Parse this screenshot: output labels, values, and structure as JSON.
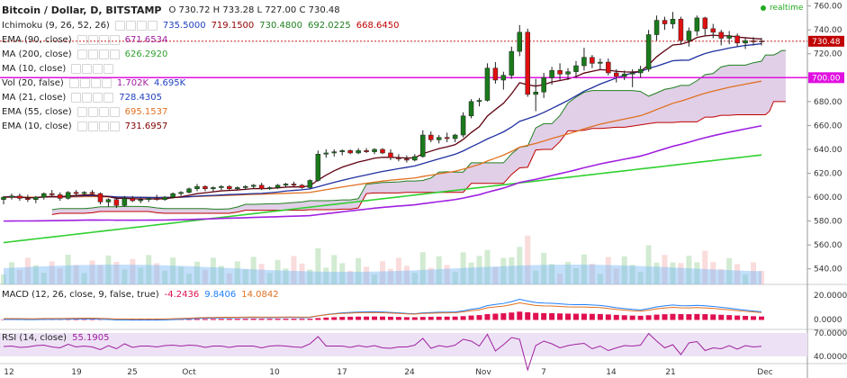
{
  "header": {
    "title": "Bitcoin / Dollar, D, BITSTAMP",
    "ohlc": "O 730.72  H 733.28  L 727.00  C 730.48",
    "realtime": "realtime"
  },
  "legend": [
    {
      "name": "Ichimoku (9, 26, 52, 26)",
      "values": [
        "735.5000",
        "719.1500",
        "730.4800",
        "692.0225",
        "668.6450"
      ],
      "colors": [
        "#2040c0",
        "#900000",
        "#208020",
        "#208020",
        "#c00000"
      ]
    },
    {
      "name": "EMA (90, close)",
      "values": [
        "671.6534"
      ],
      "colors": [
        "#a020a0"
      ]
    },
    {
      "name": "MA (200, close)",
      "values": [
        "626.2920"
      ],
      "colors": [
        "#30a030"
      ]
    },
    {
      "name": "MA (10, close)",
      "values": [],
      "colors": []
    },
    {
      "name": "Vol (20, false)",
      "values": [
        "1.702K",
        "4.695K"
      ],
      "colors": [
        "#a020a0",
        "#2040c0"
      ]
    },
    {
      "name": "MA (21, close)",
      "values": [
        "728.4305"
      ],
      "colors": [
        "#2040c0"
      ]
    },
    {
      "name": "EMA (55, close)",
      "values": [
        "695.1537"
      ],
      "colors": [
        "#e07020"
      ]
    },
    {
      "name": "EMA (10, close)",
      "values": [
        "731.6957"
      ],
      "colors": [
        "#800000"
      ]
    }
  ],
  "macd_label": {
    "name": "MACD (12, 26, close, 9, false, true)",
    "values": [
      "-4.2436",
      "9.8406",
      "14.0842"
    ],
    "colors": [
      "#e01050",
      "#2080ff",
      "#e07020"
    ]
  },
  "rsi_label": {
    "name": "RSI (14, close)",
    "values": [
      "55.1905"
    ],
    "colors": [
      "#a020a0"
    ]
  },
  "price_axis": {
    "ticks": [
      760,
      740,
      720,
      700,
      680,
      660,
      640,
      620,
      600,
      580,
      560,
      540
    ],
    "last_price": "730.48",
    "level": "700.00"
  },
  "macd_axis": {
    "ticks": [
      "20.0000",
      "0.0000"
    ]
  },
  "rsi_axis": {
    "ticks": [
      "70.0000",
      "40.0000"
    ]
  },
  "x_axis": {
    "ticks": [
      "12",
      "19",
      "25",
      "Oct",
      "10",
      "17",
      "24",
      "Nov",
      "7",
      "14",
      "21",
      "Dec"
    ]
  },
  "chart_data": {
    "type": "candlestick",
    "ylim": [
      527,
      765
    ],
    "last_price": 730.48,
    "horizontal_line": 700,
    "candles": [
      {
        "o": 598,
        "h": 601,
        "l": 594,
        "c": 600
      },
      {
        "o": 600,
        "h": 603,
        "l": 598,
        "c": 601
      },
      {
        "o": 601,
        "h": 603,
        "l": 597,
        "c": 599
      },
      {
        "o": 599,
        "h": 602,
        "l": 596,
        "c": 598
      },
      {
        "o": 598,
        "h": 601,
        "l": 595,
        "c": 600
      },
      {
        "o": 600,
        "h": 604,
        "l": 598,
        "c": 603
      },
      {
        "o": 603,
        "h": 606,
        "l": 600,
        "c": 602
      },
      {
        "o": 602,
        "h": 604,
        "l": 597,
        "c": 599
      },
      {
        "o": 599,
        "h": 605,
        "l": 598,
        "c": 604
      },
      {
        "o": 604,
        "h": 606,
        "l": 601,
        "c": 603
      },
      {
        "o": 603,
        "h": 605,
        "l": 602,
        "c": 604
      },
      {
        "o": 604,
        "h": 606,
        "l": 602,
        "c": 603
      },
      {
        "o": 603,
        "h": 604,
        "l": 594,
        "c": 596
      },
      {
        "o": 596,
        "h": 599,
        "l": 592,
        "c": 598
      },
      {
        "o": 598,
        "h": 600,
        "l": 591,
        "c": 593
      },
      {
        "o": 593,
        "h": 601,
        "l": 592,
        "c": 599
      },
      {
        "o": 599,
        "h": 601,
        "l": 596,
        "c": 597
      },
      {
        "o": 597,
        "h": 600,
        "l": 595,
        "c": 598
      },
      {
        "o": 598,
        "h": 600,
        "l": 596,
        "c": 599
      },
      {
        "o": 599,
        "h": 602,
        "l": 597,
        "c": 598
      },
      {
        "o": 598,
        "h": 601,
        "l": 597,
        "c": 600
      },
      {
        "o": 600,
        "h": 604,
        "l": 599,
        "c": 603
      },
      {
        "o": 603,
        "h": 605,
        "l": 601,
        "c": 604
      },
      {
        "o": 604,
        "h": 608,
        "l": 603,
        "c": 607
      },
      {
        "o": 607,
        "h": 611,
        "l": 605,
        "c": 609
      },
      {
        "o": 609,
        "h": 610,
        "l": 605,
        "c": 607
      },
      {
        "o": 607,
        "h": 609,
        "l": 605,
        "c": 608
      },
      {
        "o": 608,
        "h": 610,
        "l": 606,
        "c": 609
      },
      {
        "o": 609,
        "h": 610,
        "l": 606,
        "c": 607
      },
      {
        "o": 607,
        "h": 609,
        "l": 606,
        "c": 608
      },
      {
        "o": 608,
        "h": 610,
        "l": 606,
        "c": 609
      },
      {
        "o": 609,
        "h": 611,
        "l": 607,
        "c": 610
      },
      {
        "o": 610,
        "h": 612,
        "l": 606,
        "c": 607
      },
      {
        "o": 607,
        "h": 609,
        "l": 606,
        "c": 608
      },
      {
        "o": 608,
        "h": 611,
        "l": 607,
        "c": 610
      },
      {
        "o": 610,
        "h": 612,
        "l": 608,
        "c": 611
      },
      {
        "o": 611,
        "h": 613,
        "l": 609,
        "c": 610
      },
      {
        "o": 610,
        "h": 611,
        "l": 607,
        "c": 608
      },
      {
        "o": 608,
        "h": 615,
        "l": 607,
        "c": 614
      },
      {
        "o": 614,
        "h": 639,
        "l": 613,
        "c": 636
      },
      {
        "o": 636,
        "h": 640,
        "l": 633,
        "c": 637
      },
      {
        "o": 637,
        "h": 640,
        "l": 634,
        "c": 638
      },
      {
        "o": 638,
        "h": 640,
        "l": 635,
        "c": 639
      },
      {
        "o": 639,
        "h": 640,
        "l": 636,
        "c": 637
      },
      {
        "o": 637,
        "h": 641,
        "l": 636,
        "c": 639
      },
      {
        "o": 639,
        "h": 641,
        "l": 637,
        "c": 638
      },
      {
        "o": 638,
        "h": 641,
        "l": 636,
        "c": 640
      },
      {
        "o": 640,
        "h": 641,
        "l": 636,
        "c": 637
      },
      {
        "o": 637,
        "h": 640,
        "l": 631,
        "c": 633
      },
      {
        "o": 633,
        "h": 636,
        "l": 630,
        "c": 632
      },
      {
        "o": 632,
        "h": 635,
        "l": 629,
        "c": 631
      },
      {
        "o": 631,
        "h": 636,
        "l": 630,
        "c": 634
      },
      {
        "o": 634,
        "h": 656,
        "l": 633,
        "c": 652
      },
      {
        "o": 652,
        "h": 655,
        "l": 646,
        "c": 648
      },
      {
        "o": 648,
        "h": 652,
        "l": 645,
        "c": 650
      },
      {
        "o": 650,
        "h": 654,
        "l": 646,
        "c": 649
      },
      {
        "o": 649,
        "h": 653,
        "l": 646,
        "c": 652
      },
      {
        "o": 652,
        "h": 671,
        "l": 650,
        "c": 668
      },
      {
        "o": 668,
        "h": 682,
        "l": 666,
        "c": 680
      },
      {
        "o": 680,
        "h": 683,
        "l": 676,
        "c": 681
      },
      {
        "o": 681,
        "h": 712,
        "l": 680,
        "c": 708
      },
      {
        "o": 708,
        "h": 713,
        "l": 695,
        "c": 698
      },
      {
        "o": 698,
        "h": 705,
        "l": 690,
        "c": 702
      },
      {
        "o": 702,
        "h": 726,
        "l": 699,
        "c": 722
      },
      {
        "o": 722,
        "h": 744,
        "l": 718,
        "c": 738
      },
      {
        "o": 738,
        "h": 741,
        "l": 684,
        "c": 686
      },
      {
        "o": 686,
        "h": 699,
        "l": 672,
        "c": 688
      },
      {
        "o": 688,
        "h": 704,
        "l": 683,
        "c": 700
      },
      {
        "o": 700,
        "h": 709,
        "l": 694,
        "c": 706
      },
      {
        "o": 706,
        "h": 712,
        "l": 698,
        "c": 703
      },
      {
        "o": 703,
        "h": 708,
        "l": 698,
        "c": 705
      },
      {
        "o": 705,
        "h": 714,
        "l": 700,
        "c": 710
      },
      {
        "o": 710,
        "h": 725,
        "l": 706,
        "c": 717
      },
      {
        "o": 717,
        "h": 719,
        "l": 708,
        "c": 712
      },
      {
        "o": 712,
        "h": 716,
        "l": 707,
        "c": 713
      },
      {
        "o": 713,
        "h": 716,
        "l": 702,
        "c": 704
      },
      {
        "o": 704,
        "h": 707,
        "l": 696,
        "c": 701
      },
      {
        "o": 701,
        "h": 706,
        "l": 698,
        "c": 703
      },
      {
        "o": 703,
        "h": 707,
        "l": 692,
        "c": 704
      },
      {
        "o": 704,
        "h": 710,
        "l": 700,
        "c": 707
      },
      {
        "o": 707,
        "h": 740,
        "l": 705,
        "c": 736
      },
      {
        "o": 736,
        "h": 752,
        "l": 731,
        "c": 748
      },
      {
        "o": 748,
        "h": 751,
        "l": 740,
        "c": 745
      },
      {
        "o": 745,
        "h": 755,
        "l": 741,
        "c": 749
      },
      {
        "o": 749,
        "h": 751,
        "l": 728,
        "c": 731
      },
      {
        "o": 731,
        "h": 742,
        "l": 726,
        "c": 739
      },
      {
        "o": 739,
        "h": 752,
        "l": 735,
        "c": 750
      },
      {
        "o": 750,
        "h": 751,
        "l": 735,
        "c": 741
      },
      {
        "o": 741,
        "h": 745,
        "l": 733,
        "c": 738
      },
      {
        "o": 738,
        "h": 740,
        "l": 727,
        "c": 733
      },
      {
        "o": 733,
        "h": 739,
        "l": 728,
        "c": 735
      },
      {
        "o": 735,
        "h": 737,
        "l": 726,
        "c": 729
      },
      {
        "o": 729,
        "h": 733,
        "l": 724,
        "c": 731
      },
      {
        "o": 731,
        "h": 734,
        "l": 727,
        "c": 730
      },
      {
        "o": 730.72,
        "h": 733.28,
        "l": 727,
        "c": 730.48
      }
    ]
  }
}
